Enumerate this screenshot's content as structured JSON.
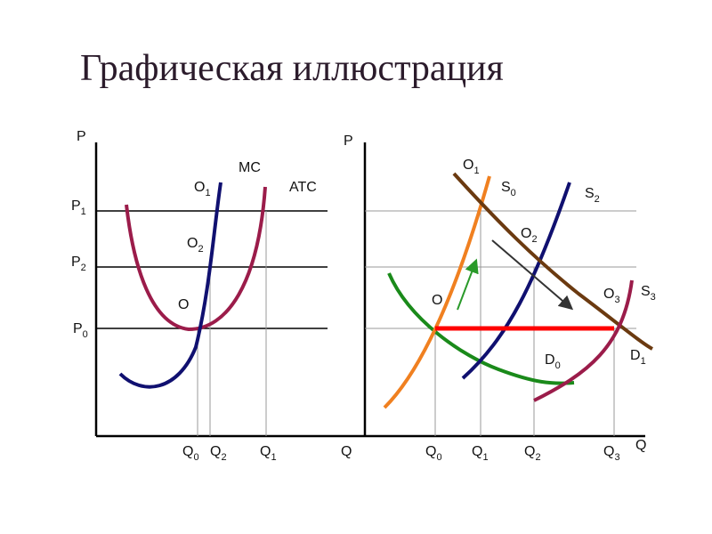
{
  "header": {
    "title": "Графическая иллюстрация"
  },
  "left": {
    "labels": [
      {
        "text": "P"
      },
      {
        "text": "P",
        "sub": "1"
      },
      {
        "text": "P",
        "sub": "2"
      },
      {
        "text": "P",
        "sub": "0"
      },
      {
        "text": "O",
        "sub": "1"
      },
      {
        "text": "MC"
      },
      {
        "text": "ATC"
      },
      {
        "text": "O",
        "sub": "2"
      },
      {
        "text": "O"
      },
      {
        "text": "Q",
        "sub": "0"
      },
      {
        "text": "Q",
        "sub": "2"
      },
      {
        "text": "Q",
        "sub": "1"
      },
      {
        "text": "Q"
      }
    ]
  },
  "right": {
    "labels": [
      {
        "text": "P"
      },
      {
        "text": "O",
        "sub": "1"
      },
      {
        "text": "S",
        "sub": "0"
      },
      {
        "text": "S",
        "sub": "2"
      },
      {
        "text": "O",
        "sub": "2"
      },
      {
        "text": "O"
      },
      {
        "text": "O",
        "sub": "3"
      },
      {
        "text": "S",
        "sub": "3"
      },
      {
        "text": "D",
        "sub": "0"
      },
      {
        "text": "D",
        "sub": "1"
      },
      {
        "text": "Q",
        "sub": "0"
      },
      {
        "text": "Q",
        "sub": "1"
      },
      {
        "text": "Q",
        "sub": "2"
      },
      {
        "text": "Q",
        "sub": "3"
      },
      {
        "text": "Q"
      }
    ]
  }
}
